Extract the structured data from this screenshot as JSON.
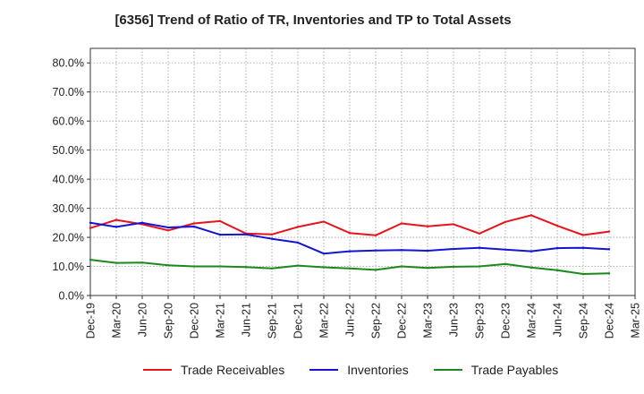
{
  "title": "[6356]  Trend of Ratio of TR, Inventories and TP to Total Assets",
  "chart_data": {
    "type": "line",
    "title": "[6356]  Trend of Ratio of TR, Inventories and TP to Total Assets",
    "xlabel": "",
    "ylabel": "",
    "ylim": [
      0,
      85
    ],
    "yticks": [
      0,
      10,
      20,
      30,
      40,
      50,
      60,
      70,
      80
    ],
    "ytick_labels": [
      "0.0%",
      "10.0%",
      "20.0%",
      "30.0%",
      "40.0%",
      "50.0%",
      "60.0%",
      "70.0%",
      "80.0%"
    ],
    "xtick_labels": [
      "Dec-19",
      "Mar-20",
      "Jun-20",
      "Sep-20",
      "Dec-20",
      "Mar-21",
      "Jun-21",
      "Sep-21",
      "Dec-21",
      "Mar-22",
      "Jun-22",
      "Sep-22",
      "Dec-22",
      "Mar-23",
      "Jun-23",
      "Sep-23",
      "Dec-23",
      "Mar-24",
      "Jun-24",
      "Sep-24",
      "Dec-24",
      "Mar-25"
    ],
    "x": [
      "Dec-19",
      "Mar-20",
      "Jun-20",
      "Sep-20",
      "Dec-20",
      "Mar-21",
      "Jun-21",
      "Sep-21",
      "Dec-21",
      "Mar-22",
      "Jun-22",
      "Sep-22",
      "Dec-22",
      "Mar-23",
      "Jun-23",
      "Sep-23",
      "Dec-23",
      "Mar-24",
      "Jun-24",
      "Sep-24",
      "Dec-24"
    ],
    "grid": true,
    "legend_position": "bottom",
    "series": [
      {
        "name": "Trade Receivables",
        "color": "#e8141b",
        "values": [
          23.2,
          26.0,
          24.5,
          22.4,
          24.8,
          25.6,
          21.3,
          21.0,
          23.6,
          25.4,
          21.5,
          20.7,
          24.8,
          23.8,
          24.5,
          21.3,
          25.3,
          27.6,
          24.0,
          20.8,
          22.0
        ]
      },
      {
        "name": "Inventories",
        "color": "#1414d2",
        "values": [
          25.0,
          23.6,
          25.0,
          23.4,
          23.7,
          20.9,
          21.0,
          19.5,
          18.2,
          14.4,
          15.2,
          15.5,
          15.6,
          15.4,
          16.0,
          16.4,
          15.8,
          15.2,
          16.3,
          16.4,
          15.9
        ]
      },
      {
        "name": "Trade Payables",
        "color": "#1b8a1b",
        "values": [
          12.3,
          11.2,
          11.3,
          10.4,
          10.0,
          10.0,
          9.8,
          9.3,
          10.3,
          9.7,
          9.3,
          8.8,
          10.0,
          9.5,
          9.9,
          10.0,
          10.8,
          9.6,
          8.7,
          7.4,
          7.6
        ]
      }
    ]
  }
}
